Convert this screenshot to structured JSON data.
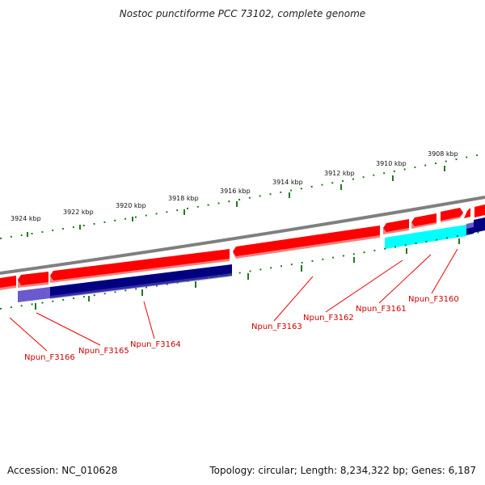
{
  "title": "Nostoc punctiforme PCC 73102, complete genome",
  "footer": {
    "accession": "Accession: NC_010628",
    "summary": "Topology: circular; Length: 8,234,322 bp; Genes: 6,187"
  },
  "scale_labels": [
    "3924 kbp",
    "3922 kbp",
    "3920 kbp",
    "3918 kbp",
    "3916 kbp",
    "3914 kbp",
    "3912 kbp",
    "3910 kbp",
    "3908 kbp"
  ],
  "genes": [
    "Npun_F3166",
    "Npun_F3165",
    "Npun_F3164",
    "Npun_F3163",
    "Npun_F3162",
    "Npun_F3161",
    "Npun_F3160"
  ],
  "colors": {
    "backbone": "#7f7f7f",
    "cds": "#ff0000",
    "cds_shadow": "#f08080",
    "annotation_dark": "#000080",
    "annotation_light": "#6a5acd",
    "annotation_cyan": "#00ffff",
    "tick": "#1f7a1f",
    "label": "#cc0000"
  }
}
